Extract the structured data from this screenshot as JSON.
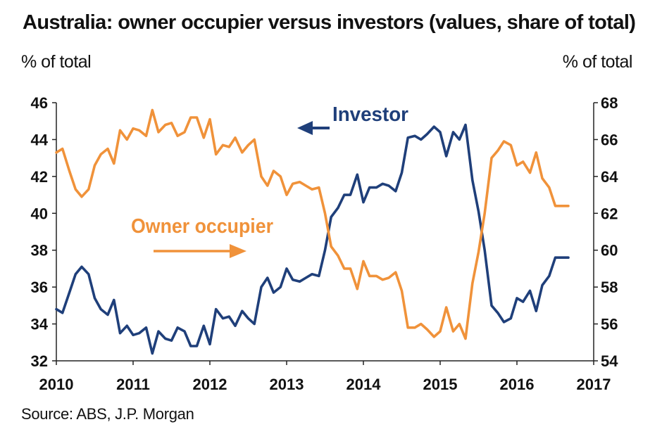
{
  "title": "Australia: owner occupier versus investors (values, share of total)",
  "source": "Source: ABS, J.P. Morgan",
  "chart_data": {
    "type": "line",
    "title": "Australia: owner occupier versus investors (values, share of total)",
    "ylabel_left": "% of total",
    "ylabel_right": "% of total",
    "xlim": [
      2010,
      2017
    ],
    "ylim_left": [
      32,
      46
    ],
    "ylim_right": [
      54,
      68
    ],
    "x_ticks": [
      "2010",
      "2011",
      "2012",
      "2013",
      "2014",
      "2015",
      "2016",
      "2017"
    ],
    "y_ticks_left": [
      "32",
      "34",
      "36",
      "38",
      "40",
      "42",
      "44",
      "46"
    ],
    "y_ticks_right": [
      "54",
      "56",
      "58",
      "60",
      "62",
      "64",
      "66",
      "68"
    ],
    "grid": false,
    "annotations": {
      "investor_label": "Investor",
      "owner_label": "Owner occupier"
    },
    "colors": {
      "investor": "#1f3f7a",
      "owner": "#f0923a"
    },
    "series": [
      {
        "name": "Investor",
        "axis": "left",
        "x": [
          2010.0,
          2010.08,
          2010.17,
          2010.25,
          2010.33,
          2010.42,
          2010.5,
          2010.58,
          2010.67,
          2010.75,
          2010.83,
          2010.92,
          2011.0,
          2011.08,
          2011.17,
          2011.25,
          2011.33,
          2011.42,
          2011.5,
          2011.58,
          2011.67,
          2011.75,
          2011.83,
          2011.92,
          2012.0,
          2012.08,
          2012.17,
          2012.25,
          2012.33,
          2012.42,
          2012.5,
          2012.58,
          2012.67,
          2012.75,
          2012.83,
          2012.92,
          2013.0,
          2013.08,
          2013.17,
          2013.25,
          2013.33,
          2013.42,
          2013.5,
          2013.58,
          2013.67,
          2013.75,
          2013.83,
          2013.92,
          2014.0,
          2014.08,
          2014.17,
          2014.25,
          2014.33,
          2014.42,
          2014.5,
          2014.58,
          2014.67,
          2014.75,
          2014.83,
          2014.92,
          2015.0,
          2015.08,
          2015.17,
          2015.25,
          2015.33,
          2015.42,
          2015.5,
          2015.58,
          2015.67,
          2015.75,
          2015.83,
          2015.92,
          2016.0,
          2016.08,
          2016.17,
          2016.25,
          2016.33,
          2016.42,
          2016.5,
          2016.58,
          2016.67
        ],
        "values": [
          34.8,
          34.6,
          35.7,
          36.7,
          37.1,
          36.7,
          35.4,
          34.8,
          34.5,
          35.3,
          33.5,
          33.9,
          33.4,
          33.5,
          33.8,
          32.4,
          33.6,
          33.2,
          33.1,
          33.8,
          33.6,
          32.8,
          32.8,
          33.9,
          32.9,
          34.8,
          34.3,
          34.4,
          33.9,
          34.7,
          34.3,
          34.0,
          36.0,
          36.5,
          35.7,
          36.0,
          37.0,
          36.4,
          36.3,
          36.5,
          36.7,
          36.6,
          38.0,
          39.8,
          40.3,
          41.0,
          41.0,
          42.1,
          40.6,
          41.4,
          41.4,
          41.6,
          41.5,
          41.2,
          42.2,
          44.1,
          44.2,
          44.0,
          44.3,
          44.7,
          44.4,
          43.1,
          44.4,
          44.0,
          44.8,
          41.8,
          40.1,
          38.0,
          35.0,
          34.6,
          34.1,
          34.3,
          35.4,
          35.2,
          35.8,
          34.7,
          36.1,
          36.6,
          37.6,
          37.6,
          37.6
        ]
      },
      {
        "name": "Owner occupier",
        "axis": "right",
        "x": [
          2010.0,
          2010.08,
          2010.17,
          2010.25,
          2010.33,
          2010.42,
          2010.5,
          2010.58,
          2010.67,
          2010.75,
          2010.83,
          2010.92,
          2011.0,
          2011.08,
          2011.17,
          2011.25,
          2011.33,
          2011.42,
          2011.5,
          2011.58,
          2011.67,
          2011.75,
          2011.83,
          2011.92,
          2012.0,
          2012.08,
          2012.17,
          2012.25,
          2012.33,
          2012.42,
          2012.5,
          2012.58,
          2012.67,
          2012.75,
          2012.83,
          2012.92,
          2013.0,
          2013.08,
          2013.17,
          2013.25,
          2013.33,
          2013.42,
          2013.5,
          2013.58,
          2013.67,
          2013.75,
          2013.83,
          2013.92,
          2014.0,
          2014.08,
          2014.17,
          2014.25,
          2014.33,
          2014.42,
          2014.5,
          2014.58,
          2014.67,
          2014.75,
          2014.83,
          2014.92,
          2015.0,
          2015.08,
          2015.17,
          2015.25,
          2015.33,
          2015.42,
          2015.5,
          2015.58,
          2015.67,
          2015.75,
          2015.83,
          2015.92,
          2016.0,
          2016.08,
          2016.17,
          2016.25,
          2016.33,
          2016.42,
          2016.5,
          2016.58,
          2016.67
        ],
        "values": [
          65.3,
          65.5,
          64.3,
          63.3,
          62.9,
          63.3,
          64.6,
          65.2,
          65.5,
          64.7,
          66.5,
          66.0,
          66.6,
          66.5,
          66.2,
          67.6,
          66.4,
          66.8,
          66.9,
          66.2,
          66.4,
          67.2,
          67.2,
          66.1,
          67.1,
          65.2,
          65.7,
          65.6,
          66.1,
          65.3,
          65.7,
          66.0,
          64.0,
          63.5,
          64.3,
          64.0,
          63.0,
          63.6,
          63.7,
          63.5,
          63.3,
          63.4,
          62.0,
          60.2,
          59.7,
          59.0,
          59.0,
          57.9,
          59.4,
          58.6,
          58.6,
          58.4,
          58.5,
          58.8,
          57.8,
          55.8,
          55.8,
          56.0,
          55.7,
          55.3,
          55.6,
          56.9,
          55.6,
          56.0,
          55.2,
          58.2,
          59.9,
          62.0,
          65.0,
          65.4,
          65.9,
          65.7,
          64.6,
          64.8,
          64.2,
          65.3,
          63.9,
          63.4,
          62.4,
          62.4,
          62.4
        ]
      }
    ]
  }
}
